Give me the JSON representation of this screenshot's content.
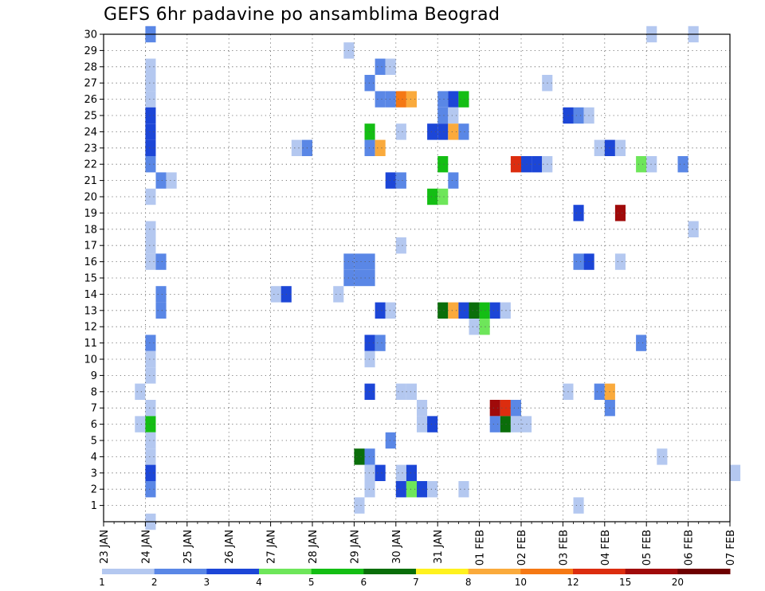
{
  "chart_data": {
    "type": "heatmap",
    "title": "GEFS 6hr padavine po ansamblima Beograd",
    "x_tick_labels": [
      "23 JAN",
      "24 JAN",
      "25 JAN",
      "26 JAN",
      "27 JAN",
      "28 JAN",
      "29 JAN",
      "30 JAN",
      "31 JAN",
      "01 FEB",
      "02 FEB",
      "03 FEB",
      "04 FEB",
      "05 FEB",
      "06 FEB",
      "07 FEB"
    ],
    "y_tick_labels": [
      "1",
      "2",
      "3",
      "4",
      "5",
      "6",
      "7",
      "8",
      "9",
      "10",
      "11",
      "12",
      "13",
      "14",
      "15",
      "16",
      "17",
      "18",
      "19",
      "20",
      "21",
      "22",
      "23",
      "24",
      "25",
      "26",
      "27",
      "28",
      "29",
      "30"
    ],
    "x_step": "6hr",
    "y_range": [
      0,
      30
    ],
    "grid": true,
    "colorbar": {
      "ticks": [
        "1",
        "2",
        "3",
        "4",
        "5",
        "6",
        "7",
        "8",
        "10",
        "12",
        "15",
        "20"
      ],
      "colors": [
        "#b4c8f0",
        "#5a87e6",
        "#1c46d7",
        "#6ee65a",
        "#14be14",
        "#0a6e0a",
        "#fff21e",
        "#faaa3c",
        "#f57814",
        "#dc2d0f",
        "#a00a0a",
        "#6e0000"
      ],
      "position": "bottom"
    },
    "cells": [
      {
        "t": 4,
        "m": 0,
        "v": 1
      },
      {
        "t": 45,
        "m": 1,
        "v": 1
      },
      {
        "t": 4,
        "m": 30,
        "v": 2
      },
      {
        "t": 4,
        "m": 28,
        "v": 1
      },
      {
        "t": 4,
        "m": 27,
        "v": 1
      },
      {
        "t": 4,
        "m": 26,
        "v": 1
      },
      {
        "t": 4,
        "m": 25,
        "v": 3
      },
      {
        "t": 4,
        "m": 24,
        "v": 3
      },
      {
        "t": 4,
        "m": 23,
        "v": 3
      },
      {
        "t": 4,
        "m": 22,
        "v": 2
      },
      {
        "t": 5,
        "m": 21,
        "v": 2
      },
      {
        "t": 6,
        "m": 21,
        "v": 1
      },
      {
        "t": 4,
        "m": 20,
        "v": 1
      },
      {
        "t": 4,
        "m": 18,
        "v": 1
      },
      {
        "t": 4,
        "m": 17,
        "v": 1
      },
      {
        "t": 5,
        "m": 16,
        "v": 2
      },
      {
        "t": 4,
        "m": 16,
        "v": 1
      },
      {
        "t": 5,
        "m": 14,
        "v": 2
      },
      {
        "t": 5,
        "m": 13,
        "v": 2
      },
      {
        "t": 4,
        "m": 11,
        "v": 2
      },
      {
        "t": 4,
        "m": 10,
        "v": 1
      },
      {
        "t": 4,
        "m": 9,
        "v": 1
      },
      {
        "t": 3,
        "m": 8,
        "v": 1
      },
      {
        "t": 4,
        "m": 7,
        "v": 1
      },
      {
        "t": 3,
        "m": 6,
        "v": 1
      },
      {
        "t": 4,
        "m": 6,
        "v": 5
      },
      {
        "t": 4,
        "m": 5,
        "v": 1
      },
      {
        "t": 4,
        "m": 4,
        "v": 1
      },
      {
        "t": 4,
        "m": 3,
        "v": 3
      },
      {
        "t": 4,
        "m": 2,
        "v": 2
      },
      {
        "t": 23,
        "m": 29,
        "v": 1
      },
      {
        "t": 26,
        "m": 28,
        "v": 2
      },
      {
        "t": 27,
        "m": 28,
        "v": 1
      },
      {
        "t": 25,
        "m": 27,
        "v": 2
      },
      {
        "t": 26,
        "m": 26,
        "v": 2
      },
      {
        "t": 27,
        "m": 26,
        "v": 2
      },
      {
        "t": 28,
        "m": 26,
        "v": 11
      },
      {
        "t": 29,
        "m": 26,
        "v": 8
      },
      {
        "t": 32,
        "m": 26,
        "v": 2
      },
      {
        "t": 33,
        "m": 26,
        "v": 3
      },
      {
        "t": 34,
        "m": 26,
        "v": 5
      },
      {
        "t": 32,
        "m": 25,
        "v": 2
      },
      {
        "t": 33,
        "m": 25,
        "v": 1
      },
      {
        "t": 25,
        "m": 24,
        "v": 5
      },
      {
        "t": 28,
        "m": 24,
        "v": 1
      },
      {
        "t": 31,
        "m": 24,
        "v": 3
      },
      {
        "t": 32,
        "m": 24,
        "v": 3
      },
      {
        "t": 33,
        "m": 24,
        "v": 9
      },
      {
        "t": 34,
        "m": 24,
        "v": 2
      },
      {
        "t": 18,
        "m": 23,
        "v": 1
      },
      {
        "t": 19,
        "m": 23,
        "v": 2
      },
      {
        "t": 25,
        "m": 23,
        "v": 2
      },
      {
        "t": 26,
        "m": 23,
        "v": 9
      },
      {
        "t": 32,
        "m": 22,
        "v": 5
      },
      {
        "t": 27,
        "m": 21,
        "v": 3
      },
      {
        "t": 28,
        "m": 21,
        "v": 2
      },
      {
        "t": 33,
        "m": 21,
        "v": 2
      },
      {
        "t": 31,
        "m": 20,
        "v": 5
      },
      {
        "t": 32,
        "m": 20,
        "v": 4
      },
      {
        "t": 28,
        "m": 17,
        "v": 1
      },
      {
        "t": 23,
        "m": 16,
        "v": 2
      },
      {
        "t": 24,
        "m": 16,
        "v": 2
      },
      {
        "t": 25,
        "m": 16,
        "v": 2
      },
      {
        "t": 23,
        "m": 15,
        "v": 2
      },
      {
        "t": 24,
        "m": 15,
        "v": 2
      },
      {
        "t": 25,
        "m": 15,
        "v": 2
      },
      {
        "t": 16,
        "m": 14,
        "v": 1
      },
      {
        "t": 17,
        "m": 14,
        "v": 3
      },
      {
        "t": 22,
        "m": 14,
        "v": 1
      },
      {
        "t": 26,
        "m": 13,
        "v": 3
      },
      {
        "t": 27,
        "m": 13,
        "v": 1
      },
      {
        "t": 32,
        "m": 13,
        "v": 6
      },
      {
        "t": 33,
        "m": 13,
        "v": 9
      },
      {
        "t": 34,
        "m": 13,
        "v": 3
      },
      {
        "t": 35,
        "m": 13,
        "v": 6
      },
      {
        "t": 36,
        "m": 13,
        "v": 5
      },
      {
        "t": 37,
        "m": 13,
        "v": 3
      },
      {
        "t": 38,
        "m": 13,
        "v": 1
      },
      {
        "t": 35,
        "m": 12,
        "v": 1
      },
      {
        "t": 36,
        "m": 12,
        "v": 4
      },
      {
        "t": 25,
        "m": 11,
        "v": 3
      },
      {
        "t": 26,
        "m": 11,
        "v": 2
      },
      {
        "t": 25,
        "m": 10,
        "v": 1
      },
      {
        "t": 25,
        "m": 8,
        "v": 3
      },
      {
        "t": 28,
        "m": 8,
        "v": 1
      },
      {
        "t": 29,
        "m": 8,
        "v": 1
      },
      {
        "t": 30,
        "m": 7,
        "v": 1
      },
      {
        "t": 30,
        "m": 6,
        "v": 1
      },
      {
        "t": 31,
        "m": 6,
        "v": 3
      },
      {
        "t": 27,
        "m": 5,
        "v": 2
      },
      {
        "t": 24,
        "m": 4,
        "v": 6
      },
      {
        "t": 25,
        "m": 4,
        "v": 2
      },
      {
        "t": 25,
        "m": 3,
        "v": 1
      },
      {
        "t": 26,
        "m": 3,
        "v": 3
      },
      {
        "t": 28,
        "m": 3,
        "v": 1
      },
      {
        "t": 29,
        "m": 3,
        "v": 3
      },
      {
        "t": 25,
        "m": 2,
        "v": 1
      },
      {
        "t": 28,
        "m": 2,
        "v": 3
      },
      {
        "t": 29,
        "m": 2,
        "v": 4
      },
      {
        "t": 30,
        "m": 2,
        "v": 3
      },
      {
        "t": 31,
        "m": 2,
        "v": 1
      },
      {
        "t": 34,
        "m": 2,
        "v": 1
      },
      {
        "t": 24,
        "m": 1,
        "v": 0
      },
      {
        "t": 37,
        "m": 7,
        "v": 15
      },
      {
        "t": 38,
        "m": 7,
        "v": 12
      },
      {
        "t": 39,
        "m": 7,
        "v": 2
      },
      {
        "t": 37,
        "m": 6,
        "v": 2
      },
      {
        "t": 38,
        "m": 6,
        "v": 6
      },
      {
        "t": 39,
        "m": 6,
        "v": 1
      },
      {
        "t": 40,
        "m": 6,
        "v": 1
      },
      {
        "t": 39,
        "m": 22,
        "v": 12
      },
      {
        "t": 40,
        "m": 22,
        "v": 3
      },
      {
        "t": 41,
        "m": 22,
        "v": 3
      },
      {
        "t": 42,
        "m": 22,
        "v": 1
      },
      {
        "t": 42,
        "m": 27,
        "v": 1
      },
      {
        "t": 44,
        "m": 25,
        "v": 3
      },
      {
        "t": 45,
        "m": 25,
        "v": 2
      },
      {
        "t": 46,
        "m": 25,
        "v": 1
      },
      {
        "t": 47,
        "m": 23,
        "v": 1
      },
      {
        "t": 48,
        "m": 23,
        "v": 3
      },
      {
        "t": 49,
        "m": 23,
        "v": 1
      },
      {
        "t": 45,
        "m": 19,
        "v": 3
      },
      {
        "t": 49,
        "m": 19,
        "v": 15
      },
      {
        "t": 45,
        "m": 16,
        "v": 2
      },
      {
        "t": 46,
        "m": 16,
        "v": 3
      },
      {
        "t": 49,
        "m": 16,
        "v": 1
      },
      {
        "t": 44,
        "m": 8,
        "v": 1
      },
      {
        "t": 47,
        "m": 8,
        "v": 2
      },
      {
        "t": 48,
        "m": 8,
        "v": 8
      },
      {
        "t": 48,
        "m": 7,
        "v": 2
      },
      {
        "t": 51,
        "m": 22,
        "v": 4
      },
      {
        "t": 52,
        "m": 22,
        "v": 1
      },
      {
        "t": 51,
        "m": 11,
        "v": 2
      },
      {
        "t": 52,
        "m": 30,
        "v": 1
      },
      {
        "t": 53,
        "m": 4,
        "v": 1
      },
      {
        "t": 55,
        "m": 22,
        "v": 2
      },
      {
        "t": 56,
        "m": 30,
        "v": 1
      },
      {
        "t": 56,
        "m": 18,
        "v": 1
      },
      {
        "t": 60,
        "m": 3,
        "v": 1
      }
    ]
  }
}
